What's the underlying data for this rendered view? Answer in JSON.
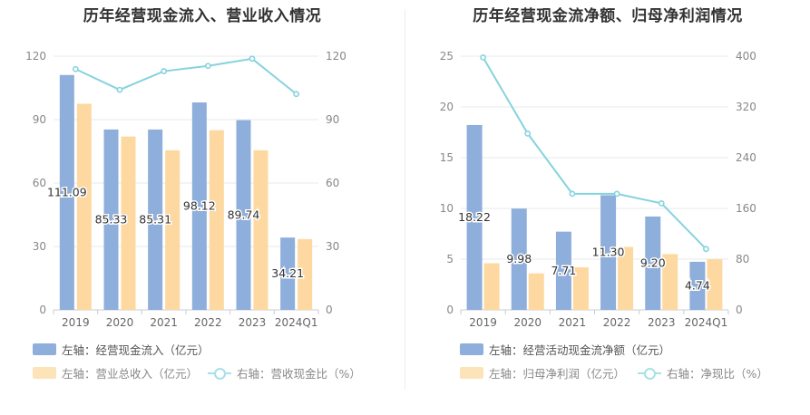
{
  "chart_data": [
    {
      "type": "bar",
      "title": "历年经营现金流入、营业收入情况",
      "categories": [
        "2019",
        "2020",
        "2021",
        "2022",
        "2023",
        "2024Q1"
      ],
      "left_axis": {
        "min": 0,
        "max": 120,
        "ticks": [
          0,
          30,
          60,
          90,
          120
        ]
      },
      "right_axis": {
        "min": 0,
        "max": 120,
        "ticks": [
          0,
          30,
          60,
          90,
          120
        ]
      },
      "series": [
        {
          "name": "左轴：经营现金流入（亿元）",
          "type": "bar",
          "axis": "left",
          "color": "#8eaedb",
          "values": [
            111.09,
            85.33,
            85.31,
            98.12,
            89.74,
            34.21
          ],
          "labels_shown": true
        },
        {
          "name": "左轴：营业总收入（亿元）",
          "type": "bar",
          "axis": "left",
          "color": "#fdd9a1",
          "values": [
            97.5,
            82.0,
            75.5,
            85.0,
            75.5,
            33.5
          ],
          "labels_shown": false
        },
        {
          "name": "右轴：营收现金比（%）",
          "type": "line",
          "axis": "right",
          "color": "#86d3dd",
          "values": [
            113.9,
            104.1,
            112.9,
            115.4,
            118.8,
            102.1
          ],
          "labels_shown": false
        }
      ]
    },
    {
      "type": "bar",
      "title": "历年经营现金流净额、归母净利润情况",
      "categories": [
        "2019",
        "2020",
        "2021",
        "2022",
        "2023",
        "2024Q1"
      ],
      "left_axis": {
        "min": 0,
        "max": 25,
        "ticks": [
          0,
          5,
          10,
          15,
          20,
          25
        ]
      },
      "right_axis": {
        "min": 0,
        "max": 400,
        "ticks": [
          0,
          80,
          160,
          240,
          320,
          400
        ]
      },
      "series": [
        {
          "name": "左轴：经营活动现金流净额（亿元）",
          "type": "bar",
          "axis": "left",
          "color": "#8eaedb",
          "values": [
            18.22,
            9.98,
            7.71,
            11.3,
            9.2,
            4.74
          ],
          "labels_shown": true
        },
        {
          "name": "左轴：归母净利润（亿元）",
          "type": "bar",
          "axis": "left",
          "color": "#fdd9a1",
          "values": [
            4.6,
            3.6,
            4.2,
            6.2,
            5.5,
            5.0
          ],
          "labels_shown": false
        },
        {
          "name": "右轴：净现比（%）",
          "type": "line",
          "axis": "right",
          "color": "#86d3dd",
          "values": [
            398,
            278,
            183,
            183,
            168,
            96
          ],
          "labels_shown": false
        }
      ]
    }
  ]
}
